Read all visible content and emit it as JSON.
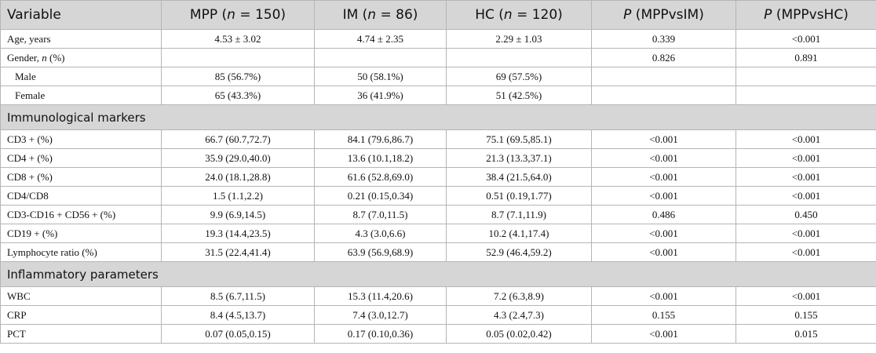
{
  "table": {
    "header": [
      [
        {
          "text": "Variable"
        }
      ],
      [
        {
          "text": "MPP ("
        },
        {
          "text": "n",
          "italic": true
        },
        {
          "text": " = 150)"
        }
      ],
      [
        {
          "text": "IM ("
        },
        {
          "text": "n",
          "italic": true
        },
        {
          "text": " = 86)"
        }
      ],
      [
        {
          "text": "HC ("
        },
        {
          "text": "n",
          "italic": true
        },
        {
          "text": " = 120)"
        }
      ],
      [
        {
          "text": "P",
          "italic": true
        },
        {
          "text": " (MPPvsIM)"
        }
      ],
      [
        {
          "text": "P",
          "italic": true
        },
        {
          "text": " (MPPvsHC)"
        }
      ]
    ],
    "rows": [
      {
        "cells": [
          "Age, years",
          "4.53 ± 3.02",
          "4.74 ± 2.35",
          "2.29 ± 1.03",
          "0.339",
          "<0.001"
        ]
      },
      {
        "cells": [
          [
            {
              "text": "Gender, "
            },
            {
              "text": "n",
              "italic": true
            },
            {
              "text": " (%)"
            }
          ],
          null,
          null,
          null,
          "0.826",
          "0.891"
        ]
      },
      {
        "cells": [
          "Male",
          "85 (56.7%)",
          "50 (58.1%)",
          "69 (57.5%)",
          null,
          null
        ],
        "indent": true
      },
      {
        "cells": [
          "Female",
          "65 (43.3%)",
          "36 (41.9%)",
          "51 (42.5%)",
          null,
          null
        ],
        "indent": true
      },
      {
        "section": "Immunological markers"
      },
      {
        "cells": [
          "CD3 + (%)",
          "66.7 (60.7,72.7)",
          "84.1 (79.6,86.7)",
          "75.1 (69.5,85.1)",
          "<0.001",
          "<0.001"
        ]
      },
      {
        "cells": [
          "CD4 + (%)",
          "35.9 (29.0,40.0)",
          "13.6 (10.1,18.2)",
          "21.3 (13.3,37.1)",
          "<0.001",
          "<0.001"
        ]
      },
      {
        "cells": [
          "CD8 + (%)",
          "24.0 (18.1,28.8)",
          "61.6 (52.8,69.0)",
          "38.4 (21.5,64.0)",
          "<0.001",
          "<0.001"
        ]
      },
      {
        "cells": [
          "CD4/CD8",
          "1.5 (1.1,2.2)",
          "0.21 (0.15,0.34)",
          "0.51 (0.19,1.77)",
          "<0.001",
          "<0.001"
        ]
      },
      {
        "cells": [
          "CD3-CD16 + CD56 + (%)",
          "9.9 (6.9,14.5)",
          "8.7 (7.0,11.5)",
          "8.7 (7.1,11.9)",
          "0.486",
          "0.450"
        ]
      },
      {
        "cells": [
          "CD19 + (%)",
          "19.3 (14.4,23.5)",
          "4.3 (3.0,6.6)",
          "10.2 (4.1,17.4)",
          "<0.001",
          "<0.001"
        ]
      },
      {
        "cells": [
          "Lymphocyte ratio (%)",
          "31.5 (22.4,41.4)",
          "63.9 (56.9,68.9)",
          "52.9 (46.4,59.2)",
          "<0.001",
          "<0.001"
        ]
      },
      {
        "section": "Inflammatory parameters"
      },
      {
        "cells": [
          "WBC",
          "8.5 (6.7,11.5)",
          "15.3 (11.4,20.6)",
          "7.2 (6.3,8.9)",
          "<0.001",
          "<0.001"
        ]
      },
      {
        "cells": [
          "CRP",
          "8.4 (4.5,13.7)",
          "7.4 (3.0,12.7)",
          "4.3 (2.4,7.3)",
          "0.155",
          "0.155"
        ]
      },
      {
        "cells": [
          "PCT",
          "0.07 (0.05,0.15)",
          "0.17 (0.10,0.36)",
          "0.05 (0.02,0.42)",
          "<0.001",
          "0.015"
        ]
      }
    ]
  }
}
